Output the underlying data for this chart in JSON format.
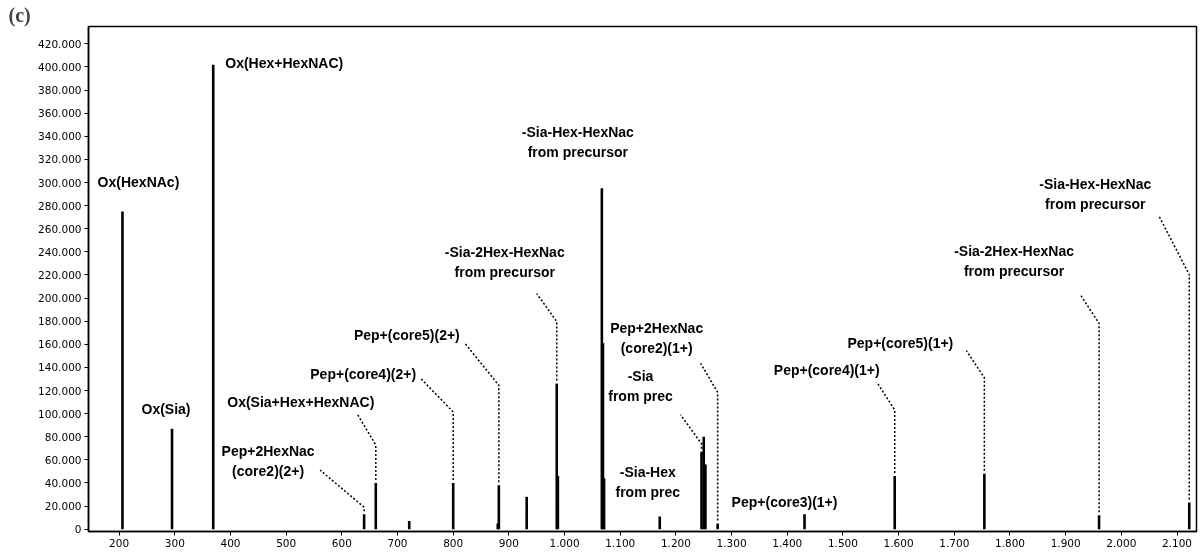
{
  "chart_data": {
    "type": "bar",
    "title": "(c)",
    "x": [
      206,
      295,
      369,
      640,
      661,
      721,
      800,
      880,
      882,
      932,
      986,
      988,
      1067,
      1069,
      1071,
      1171,
      1246,
      1250,
      1253,
      1275,
      1431,
      1593,
      1754,
      1960,
      2122
    ],
    "series": [
      {
        "color": "#000000",
        "values": [
          275000,
          87000,
          402000,
          13000,
          40000,
          7000,
          40000,
          5000,
          38000,
          28000,
          126000,
          46000,
          295000,
          161000,
          44000,
          11000,
          67000,
          80000,
          56000,
          5000,
          13000,
          46000,
          48000,
          12000,
          23000
        ]
      }
    ],
    "xlim": [
      145,
      2135
    ],
    "ylim": [
      -2000,
      435000
    ],
    "xticks": [
      200,
      300,
      400,
      500,
      600,
      700,
      800,
      900,
      {
        "value": 1000,
        "label": "1.000"
      },
      {
        "value": 1100,
        "label": "1.100"
      },
      {
        "value": 1200,
        "label": "1.200"
      },
      {
        "value": 1300,
        "label": "1.300"
      },
      {
        "value": 1400,
        "label": "1.400"
      },
      {
        "value": 1500,
        "label": "1.500"
      },
      {
        "value": 1600,
        "label": "1.600"
      },
      {
        "value": 1700,
        "label": "1.700"
      },
      {
        "value": 1800,
        "label": "1.800"
      },
      {
        "value": 1900,
        "label": "1.900"
      },
      {
        "value": 2000,
        "label": "2.000"
      },
      {
        "value": 2100,
        "label": "2.100"
      }
    ],
    "yticks": [
      0,
      {
        "value": 20000,
        "label": "20.000"
      },
      {
        "value": 40000,
        "label": "40.000"
      },
      {
        "value": 60000,
        "label": "60.000"
      },
      {
        "value": 80000,
        "label": "80.000"
      },
      {
        "value": 100000,
        "label": "100.000"
      },
      {
        "value": 120000,
        "label": "120.000"
      },
      {
        "value": 140000,
        "label": "140.000"
      },
      {
        "value": 160000,
        "label": "160.000"
      },
      {
        "value": 180000,
        "label": "180.000"
      },
      {
        "value": 200000,
        "label": "200.000"
      },
      {
        "value": 220000,
        "label": "220.000"
      },
      {
        "value": 240000,
        "label": "240.000"
      },
      {
        "value": 260000,
        "label": "260.000"
      },
      {
        "value": 280000,
        "label": "280.000"
      },
      {
        "value": 300000,
        "label": "300.000"
      },
      {
        "value": 320000,
        "label": "320.000"
      },
      {
        "value": 340000,
        "label": "340.000"
      },
      {
        "value": 360000,
        "label": "360.000"
      },
      {
        "value": 380000,
        "label": "380.000"
      },
      {
        "value": 400000,
        "label": "400.000"
      },
      {
        "value": 420000,
        "label": "420.000"
      }
    ],
    "grid": false,
    "annotations": [
      {
        "text": "Ox(HexNAc)",
        "x": 206,
        "y": 275000
      },
      {
        "text": "Ox(Sia)",
        "x": 295,
        "y": 87000
      },
      {
        "text": "Ox(Hex+HexNAC)",
        "x": 369,
        "y": 402000
      },
      {
        "text": "Pep+2HexNac\n(core2)(2+)",
        "x": 640,
        "y": 13000
      },
      {
        "text": "Ox(Sia+Hex+HexNAC)",
        "x": 661,
        "y": 40000
      },
      {
        "text": "Pep+(core4)(2+)",
        "x": 800,
        "y": 40000
      },
      {
        "text": "Pep+(core5)(2+)",
        "x": 882,
        "y": 38000
      },
      {
        "text": "-Sia-2Hex-HexNac\nfrom precursor",
        "x": 986,
        "y": 126000
      },
      {
        "text": "-Sia-Hex-HexNac\nfrom precursor",
        "x": 1067,
        "y": 295000
      },
      {
        "text": "Pep+2HexNac\n(core2)(1+)",
        "x": 1275,
        "y": 5000
      },
      {
        "text": "-Sia\nfrom prec",
        "x": 1246,
        "y": 67000
      },
      {
        "text": "-Sia-Hex\nfrom prec",
        "x": 1171,
        "y": 11000
      },
      {
        "text": "Pep+(core3)(1+)",
        "x": 1431,
        "y": 13000
      },
      {
        "text": "Pep+(core4)(1+)",
        "x": 1593,
        "y": 46000
      },
      {
        "text": "Pep+(core5)(1+)",
        "x": 1754,
        "y": 48000
      },
      {
        "text": "-Sia-2Hex-HexNac\nfrom precursor",
        "x": 1960,
        "y": 12000
      },
      {
        "text": "-Sia-Hex-HexNac\nfrom precursor",
        "x": 2122,
        "y": 23000
      }
    ]
  }
}
